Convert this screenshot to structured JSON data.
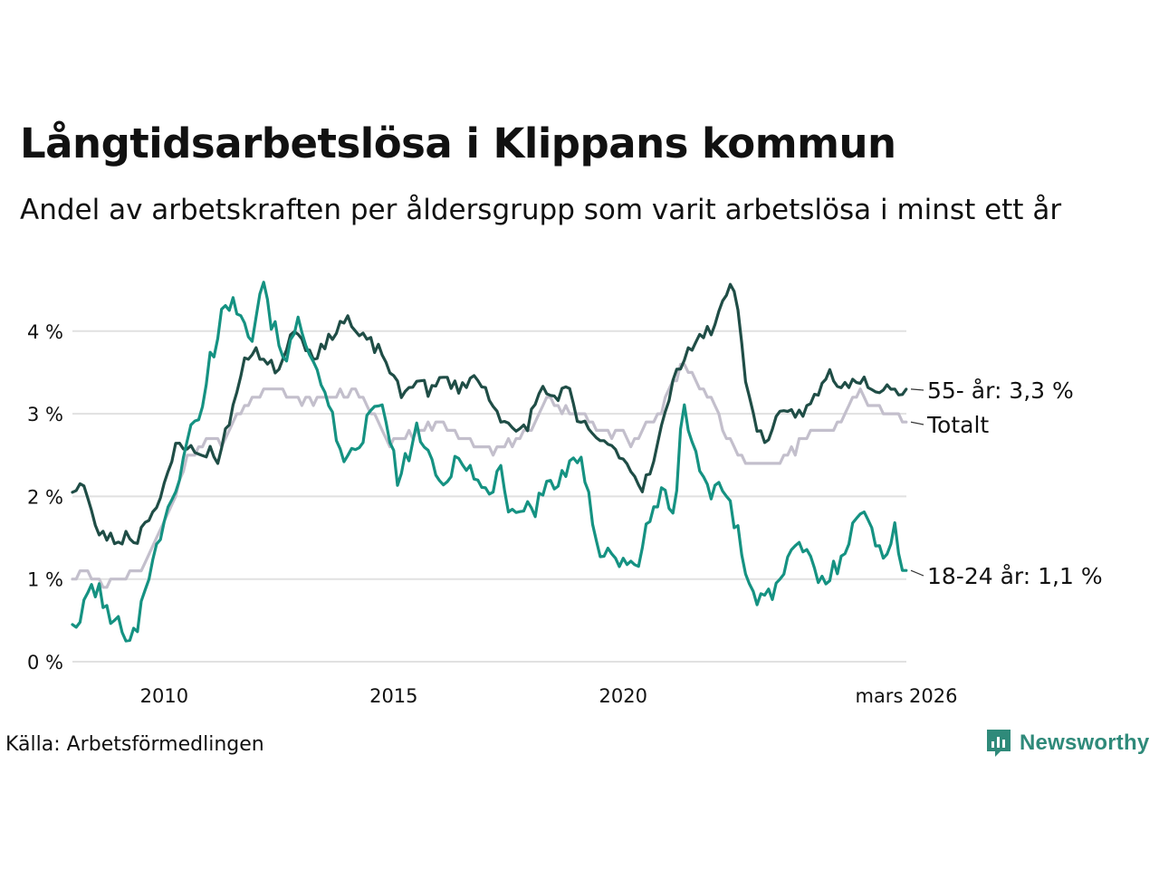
{
  "title": "Långtidsarbetslösa i Klippans kommun",
  "subtitle": "Andel av arbetskraften per åldersgrupp som varit arbetslösa i minst ett år",
  "source": "Källa: Arbetsförmedlingen",
  "brand": "Newsworthy",
  "colors": {
    "older": "#1f4d46",
    "total": "#c3bfcc",
    "young": "#159282",
    "grid": "#e1e1e1",
    "brand": "#2f8a7a"
  },
  "chart_data": {
    "type": "line",
    "x_start": 2008.0,
    "x_step": 0.0833333,
    "x_end": 2026.17,
    "ylim": [
      0,
      4.8
    ],
    "yticks": [
      0,
      1,
      2,
      3,
      4
    ],
    "ytick_labels": [
      "0 %",
      "1 %",
      "2 %",
      "3 %",
      "4 %"
    ],
    "xticks": [
      2010,
      2015,
      2020,
      2026.17
    ],
    "xtick_labels": [
      "2010",
      "2015",
      "2020",
      "mars 2026"
    ],
    "series": [
      {
        "key": "total",
        "name": "Totalt",
        "end_label": "Totalt",
        "knots": [
          [
            2008.0,
            1.0
          ],
          [
            2008.2,
            1.1
          ],
          [
            2008.5,
            1.0
          ],
          [
            2008.8,
            0.95
          ],
          [
            2009.0,
            1.0
          ],
          [
            2009.3,
            1.05
          ],
          [
            2009.6,
            1.2
          ],
          [
            2009.9,
            1.6
          ],
          [
            2010.2,
            1.9
          ],
          [
            2010.5,
            2.5
          ],
          [
            2010.8,
            2.6
          ],
          [
            2011.0,
            2.7
          ],
          [
            2011.2,
            2.6
          ],
          [
            2011.5,
            2.9
          ],
          [
            2011.8,
            3.1
          ],
          [
            2012.0,
            3.2
          ],
          [
            2012.3,
            3.3
          ],
          [
            2012.6,
            3.25
          ],
          [
            2012.9,
            3.2
          ],
          [
            2013.2,
            3.15
          ],
          [
            2013.6,
            3.2
          ],
          [
            2014.0,
            3.25
          ],
          [
            2014.3,
            3.2
          ],
          [
            2014.6,
            3.0
          ],
          [
            2014.9,
            2.6
          ],
          [
            2015.2,
            2.7
          ],
          [
            2015.6,
            2.8
          ],
          [
            2016.0,
            2.9
          ],
          [
            2016.4,
            2.75
          ],
          [
            2016.8,
            2.6
          ],
          [
            2017.2,
            2.55
          ],
          [
            2017.6,
            2.65
          ],
          [
            2018.0,
            2.8
          ],
          [
            2018.4,
            3.2
          ],
          [
            2018.8,
            3.0
          ],
          [
            2019.2,
            2.95
          ],
          [
            2019.6,
            2.8
          ],
          [
            2020.0,
            2.75
          ],
          [
            2020.2,
            2.6
          ],
          [
            2020.5,
            2.9
          ],
          [
            2020.8,
            3.0
          ],
          [
            2021.1,
            3.4
          ],
          [
            2021.3,
            3.6
          ],
          [
            2021.5,
            3.5
          ],
          [
            2021.7,
            3.3
          ],
          [
            2021.9,
            3.2
          ],
          [
            2022.2,
            2.8
          ],
          [
            2022.5,
            2.5
          ],
          [
            2022.8,
            2.4
          ],
          [
            2023.2,
            2.4
          ],
          [
            2023.5,
            2.45
          ],
          [
            2023.8,
            2.6
          ],
          [
            2024.1,
            2.8
          ],
          [
            2024.5,
            2.8
          ],
          [
            2024.8,
            2.9
          ],
          [
            2025.1,
            3.3
          ],
          [
            2025.4,
            3.1
          ],
          [
            2025.7,
            3.05
          ],
          [
            2026.0,
            2.95
          ],
          [
            2026.17,
            2.9
          ]
        ],
        "noise": 0.04,
        "steps": true,
        "seed": 7
      },
      {
        "key": "older",
        "name": "55- år",
        "end_label": "55- år: 3,3 %",
        "knots": [
          [
            2008.0,
            2.05
          ],
          [
            2008.2,
            2.2
          ],
          [
            2008.35,
            1.95
          ],
          [
            2008.5,
            1.6
          ],
          [
            2008.8,
            1.5
          ],
          [
            2009.0,
            1.45
          ],
          [
            2009.2,
            1.55
          ],
          [
            2009.4,
            1.45
          ],
          [
            2009.6,
            1.75
          ],
          [
            2009.9,
            1.9
          ],
          [
            2010.1,
            2.3
          ],
          [
            2010.3,
            2.7
          ],
          [
            2010.5,
            2.6
          ],
          [
            2010.7,
            2.5
          ],
          [
            2011.0,
            2.55
          ],
          [
            2011.2,
            2.45
          ],
          [
            2011.4,
            2.9
          ],
          [
            2011.6,
            3.3
          ],
          [
            2011.8,
            3.7
          ],
          [
            2012.0,
            3.8
          ],
          [
            2012.2,
            3.6
          ],
          [
            2012.5,
            3.55
          ],
          [
            2012.7,
            3.9
          ],
          [
            2012.9,
            4.05
          ],
          [
            2013.2,
            3.7
          ],
          [
            2013.5,
            3.8
          ],
          [
            2013.8,
            4.1
          ],
          [
            2014.0,
            4.15
          ],
          [
            2014.2,
            3.95
          ],
          [
            2014.5,
            3.85
          ],
          [
            2014.8,
            3.7
          ],
          [
            2015.0,
            3.4
          ],
          [
            2015.2,
            3.2
          ],
          [
            2015.5,
            3.45
          ],
          [
            2015.8,
            3.25
          ],
          [
            2016.1,
            3.45
          ],
          [
            2016.4,
            3.3
          ],
          [
            2016.7,
            3.45
          ],
          [
            2017.0,
            3.3
          ],
          [
            2017.3,
            3.0
          ],
          [
            2017.6,
            2.75
          ],
          [
            2017.9,
            2.85
          ],
          [
            2018.2,
            3.3
          ],
          [
            2018.5,
            3.2
          ],
          [
            2018.8,
            3.3
          ],
          [
            2019.0,
            2.9
          ],
          [
            2019.3,
            2.8
          ],
          [
            2019.6,
            2.6
          ],
          [
            2019.9,
            2.55
          ],
          [
            2020.2,
            2.3
          ],
          [
            2020.4,
            2.1
          ],
          [
            2020.7,
            2.5
          ],
          [
            2021.0,
            3.2
          ],
          [
            2021.3,
            3.7
          ],
          [
            2021.6,
            3.9
          ],
          [
            2021.9,
            4.0
          ],
          [
            2022.1,
            4.2
          ],
          [
            2022.3,
            4.6
          ],
          [
            2022.5,
            4.3
          ],
          [
            2022.7,
            3.3
          ],
          [
            2022.9,
            2.8
          ],
          [
            2023.1,
            2.7
          ],
          [
            2023.4,
            2.95
          ],
          [
            2023.7,
            3.0
          ],
          [
            2024.0,
            3.05
          ],
          [
            2024.3,
            3.3
          ],
          [
            2024.5,
            3.5
          ],
          [
            2024.8,
            3.3
          ],
          [
            2025.0,
            3.45
          ],
          [
            2025.3,
            3.4
          ],
          [
            2025.6,
            3.3
          ],
          [
            2025.8,
            3.4
          ],
          [
            2026.0,
            3.2
          ],
          [
            2026.17,
            3.3
          ]
        ],
        "noise": 0.08,
        "steps": false,
        "seed": 23
      },
      {
        "key": "young",
        "name": "18-24 år",
        "end_label": "18-24 år: 1,1 %",
        "knots": [
          [
            2008.0,
            0.45
          ],
          [
            2008.2,
            0.5
          ],
          [
            2008.35,
            0.9
          ],
          [
            2008.6,
            0.85
          ],
          [
            2008.8,
            0.5
          ],
          [
            2009.0,
            0.45
          ],
          [
            2009.2,
            0.35
          ],
          [
            2009.4,
            0.4
          ],
          [
            2009.6,
            0.9
          ],
          [
            2009.8,
            1.4
          ],
          [
            2010.0,
            1.7
          ],
          [
            2010.2,
            1.9
          ],
          [
            2010.4,
            2.5
          ],
          [
            2010.6,
            2.85
          ],
          [
            2010.8,
            2.9
          ],
          [
            2010.95,
            3.6
          ],
          [
            2011.1,
            3.8
          ],
          [
            2011.3,
            4.35
          ],
          [
            2011.5,
            4.3
          ],
          [
            2011.7,
            4.3
          ],
          [
            2011.9,
            3.9
          ],
          [
            2012.0,
            4.2
          ],
          [
            2012.15,
            4.7
          ],
          [
            2012.3,
            4.2
          ],
          [
            2012.5,
            3.85
          ],
          [
            2012.7,
            3.7
          ],
          [
            2012.9,
            4.1
          ],
          [
            2013.1,
            3.8
          ],
          [
            2013.3,
            3.7
          ],
          [
            2013.5,
            3.2
          ],
          [
            2013.7,
            2.85
          ],
          [
            2013.9,
            2.3
          ],
          [
            2014.1,
            2.5
          ],
          [
            2014.3,
            2.7
          ],
          [
            2014.5,
            3.0
          ],
          [
            2014.7,
            3.1
          ],
          [
            2014.9,
            2.8
          ],
          [
            2015.1,
            2.1
          ],
          [
            2015.3,
            2.5
          ],
          [
            2015.5,
            2.8
          ],
          [
            2015.7,
            2.6
          ],
          [
            2015.9,
            2.2
          ],
          [
            2016.1,
            2.1
          ],
          [
            2016.3,
            2.4
          ],
          [
            2016.5,
            2.5
          ],
          [
            2016.7,
            2.3
          ],
          [
            2016.9,
            2.1
          ],
          [
            2017.1,
            2.0
          ],
          [
            2017.3,
            2.4
          ],
          [
            2017.5,
            1.9
          ],
          [
            2017.7,
            1.8
          ],
          [
            2017.9,
            1.9
          ],
          [
            2018.1,
            1.8
          ],
          [
            2018.3,
            2.2
          ],
          [
            2018.5,
            2.1
          ],
          [
            2018.7,
            2.3
          ],
          [
            2018.9,
            2.35
          ],
          [
            2019.1,
            2.4
          ],
          [
            2019.3,
            1.8
          ],
          [
            2019.5,
            1.35
          ],
          [
            2019.7,
            1.4
          ],
          [
            2019.9,
            1.2
          ],
          [
            2020.1,
            1.2
          ],
          [
            2020.3,
            1.1
          ],
          [
            2020.5,
            1.7
          ],
          [
            2020.7,
            1.8
          ],
          [
            2020.9,
            2.1
          ],
          [
            2021.1,
            1.7
          ],
          [
            2021.3,
            3.1
          ],
          [
            2021.5,
            2.7
          ],
          [
            2021.7,
            2.3
          ],
          [
            2021.9,
            1.95
          ],
          [
            2022.1,
            2.2
          ],
          [
            2022.3,
            2.0
          ],
          [
            2022.5,
            1.55
          ],
          [
            2022.7,
            1.0
          ],
          [
            2022.9,
            0.8
          ],
          [
            2023.1,
            0.75
          ],
          [
            2023.3,
            0.85
          ],
          [
            2023.5,
            1.1
          ],
          [
            2023.7,
            1.3
          ],
          [
            2023.9,
            1.4
          ],
          [
            2024.1,
            1.2
          ],
          [
            2024.3,
            0.95
          ],
          [
            2024.5,
            1.05
          ],
          [
            2024.7,
            1.2
          ],
          [
            2024.9,
            1.5
          ],
          [
            2025.1,
            1.85
          ],
          [
            2025.3,
            1.7
          ],
          [
            2025.5,
            1.45
          ],
          [
            2025.7,
            1.3
          ],
          [
            2025.9,
            1.65
          ],
          [
            2026.0,
            1.3
          ],
          [
            2026.17,
            1.1
          ]
        ],
        "noise": 0.12,
        "steps": false,
        "seed": 101
      }
    ]
  }
}
